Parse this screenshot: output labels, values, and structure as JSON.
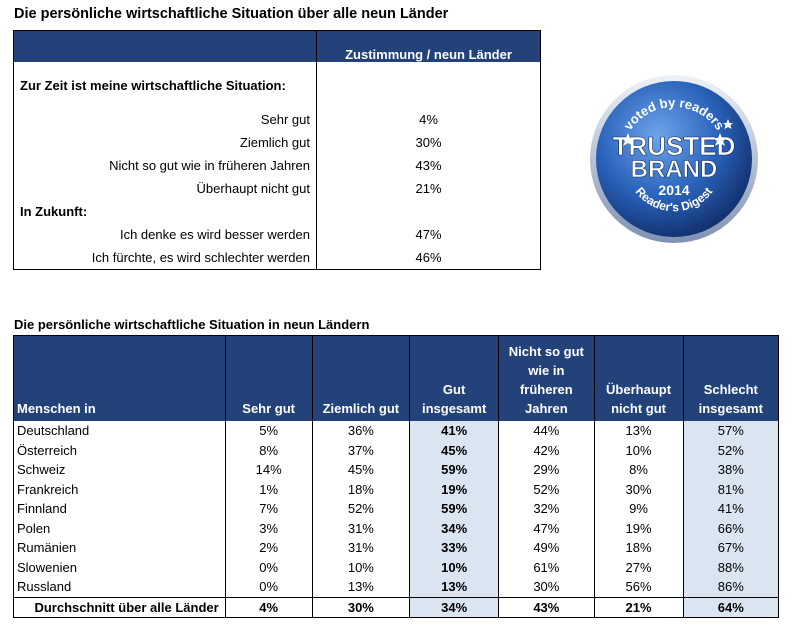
{
  "title_overall": "Die persönliche wirtschaftliche Situation über alle neun Länder",
  "table1": {
    "header": "Zustimmung / neun Länder",
    "rows": [
      {
        "label": "Zur Zeit ist meine wirtschaftliche Situation:",
        "value": "",
        "section": true
      },
      {
        "label": "Sehr gut",
        "value": "4%"
      },
      {
        "label": "Ziemlich gut",
        "value": "30%"
      },
      {
        "label": "Nicht so gut wie in früheren Jahren",
        "value": "43%"
      },
      {
        "label": "Überhaupt nicht gut",
        "value": "21%"
      },
      {
        "label": "In Zukunft:",
        "value": "",
        "section": true
      },
      {
        "label": "Ich denke es wird besser werden",
        "value": "47%"
      },
      {
        "label": "Ich fürchte, es wird schlechter werden",
        "value": "46%"
      }
    ]
  },
  "title_countries": "Die persönliche wirtschaftliche Situation in neun Ländern",
  "table2": {
    "headers": [
      "Menschen in",
      "Sehr gut",
      "Ziemlich gut",
      "Gut insgesamt",
      "Nicht so gut wie in früheren Jahren",
      "Überhaupt nicht gut",
      "Schlecht insgesamt"
    ],
    "rows": [
      [
        "Deutschland",
        "5%",
        "36%",
        "41%",
        "44%",
        "13%",
        "57%"
      ],
      [
        "Österreich",
        "8%",
        "37%",
        "45%",
        "42%",
        "10%",
        "52%"
      ],
      [
        "Schweiz",
        "14%",
        "45%",
        "59%",
        "29%",
        "8%",
        "38%"
      ],
      [
        "Frankreich",
        "1%",
        "18%",
        "19%",
        "52%",
        "30%",
        "81%"
      ],
      [
        "Finnland",
        "7%",
        "52%",
        "59%",
        "32%",
        "9%",
        "41%"
      ],
      [
        "Polen",
        "3%",
        "31%",
        "34%",
        "47%",
        "19%",
        "66%"
      ],
      [
        "Rumänien",
        "2%",
        "31%",
        "33%",
        "49%",
        "18%",
        "67%"
      ],
      [
        "Slowenien",
        "0%",
        "10%",
        "10%",
        "61%",
        "27%",
        "88%"
      ],
      [
        "Russland",
        "0%",
        "13%",
        "13%",
        "30%",
        "56%",
        "86%"
      ]
    ],
    "average": [
      "Durchschnitt über alle Länder",
      "4%",
      "30%",
      "34%",
      "43%",
      "21%",
      "64%"
    ]
  },
  "badge": {
    "line1": "voted by readers",
    "line2": "TRUSTED",
    "line3": "BRAND",
    "year": "2014",
    "publisher": "Reader's Digest",
    "colors": {
      "outer": "#1c3f8f",
      "inner": "#3d7ad1",
      "ring": "#b8c7dd"
    }
  },
  "colors": {
    "header_bg": "#23427a",
    "highlight_bg": "#dbe5f1"
  }
}
